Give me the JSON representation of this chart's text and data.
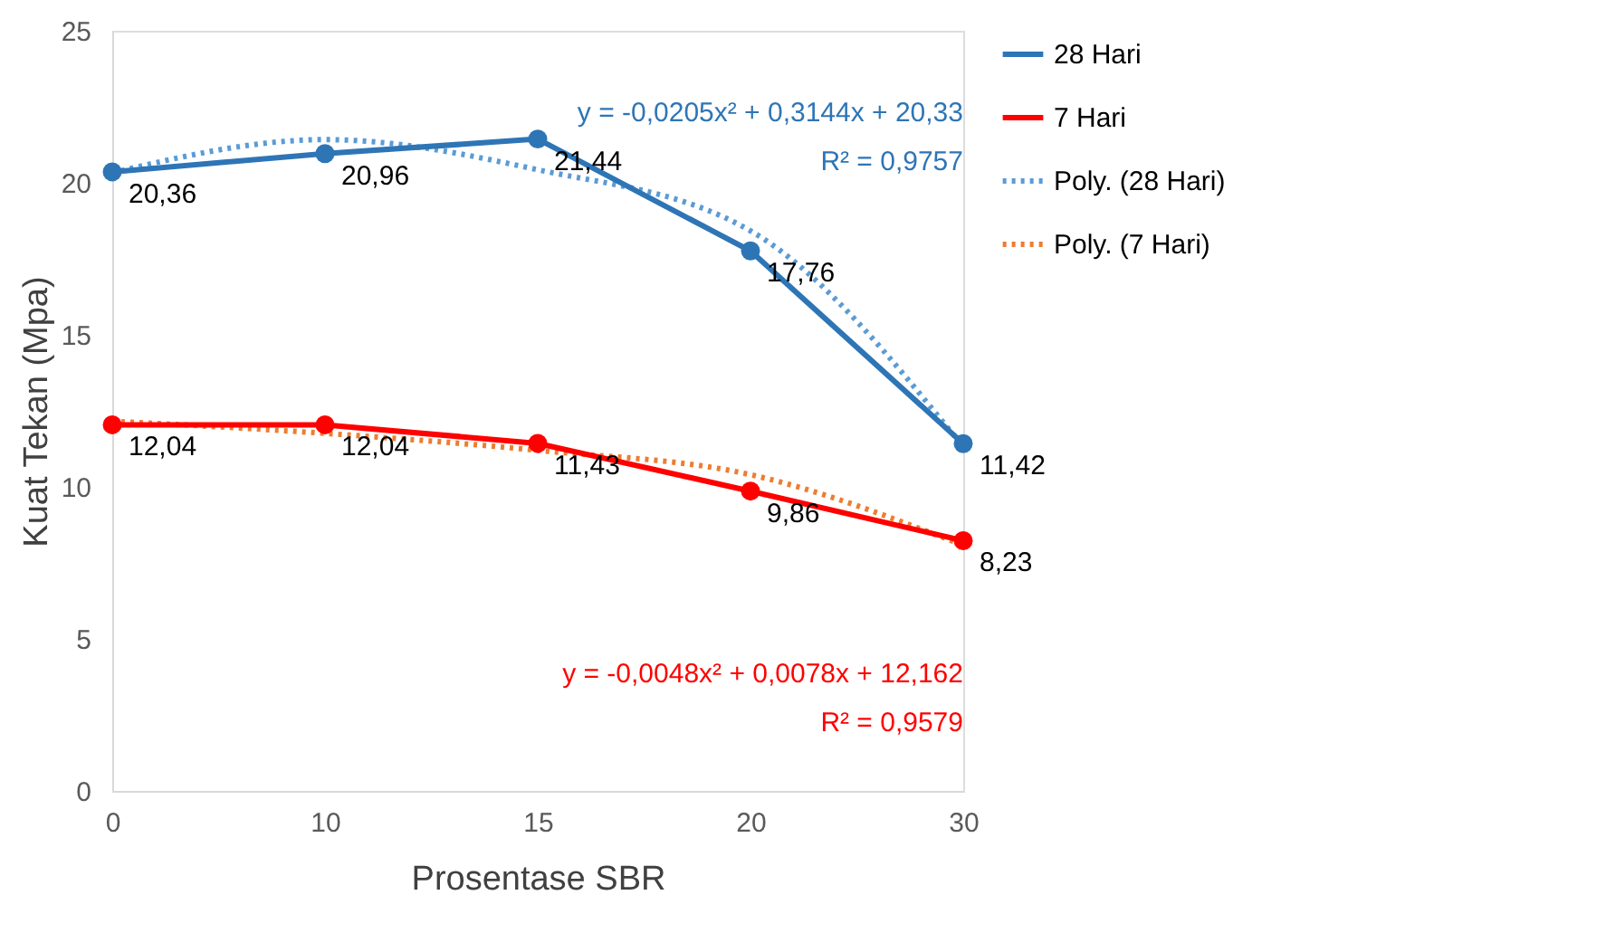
{
  "chart_data": {
    "type": "line",
    "xlabel": "Prosentase SBR",
    "ylabel": "Kuat Tekan (Mpa)",
    "categories": [
      "0",
      "10",
      "15",
      "20",
      "30"
    ],
    "ylim": [
      0,
      25
    ],
    "yticks": [
      0,
      5,
      10,
      15,
      20,
      25
    ],
    "grid": false,
    "legend": "right",
    "series": [
      {
        "name": "28 Hari",
        "color": "#2e75b6",
        "marker": "circle",
        "line_style": "solid",
        "values": [
          20.36,
          20.96,
          21.44,
          17.76,
          11.42
        ],
        "value_labels": [
          "20,36",
          "20,96",
          "21,44",
          "17,76",
          "11,42"
        ]
      },
      {
        "name": "7 Hari",
        "color": "#ff0000",
        "marker": "circle",
        "line_style": "solid",
        "values": [
          12.04,
          12.04,
          11.43,
          9.86,
          8.23
        ],
        "value_labels": [
          "12,04",
          "12,04",
          "11,43",
          "9,86",
          "8,23"
        ]
      },
      {
        "name": "Poly. (28 Hari)",
        "color": "#5b9bd5",
        "marker": "none",
        "line_style": "dotted",
        "values": [
          20.33,
          21.42,
          20.43,
          18.42,
          11.31
        ]
      },
      {
        "name": "Poly. (7 Hari)",
        "color": "#ed7d31",
        "marker": "none",
        "line_style": "dotted",
        "values": [
          12.16,
          11.76,
          11.2,
          10.4,
          8.08
        ]
      }
    ],
    "annotations": [
      "y = -0,0205x² + 0,3144x + 20,33",
      "R² = 0,9757",
      "y = -0,0048x² + 0,0078x + 12,162",
      "R² = 0,9579"
    ]
  }
}
